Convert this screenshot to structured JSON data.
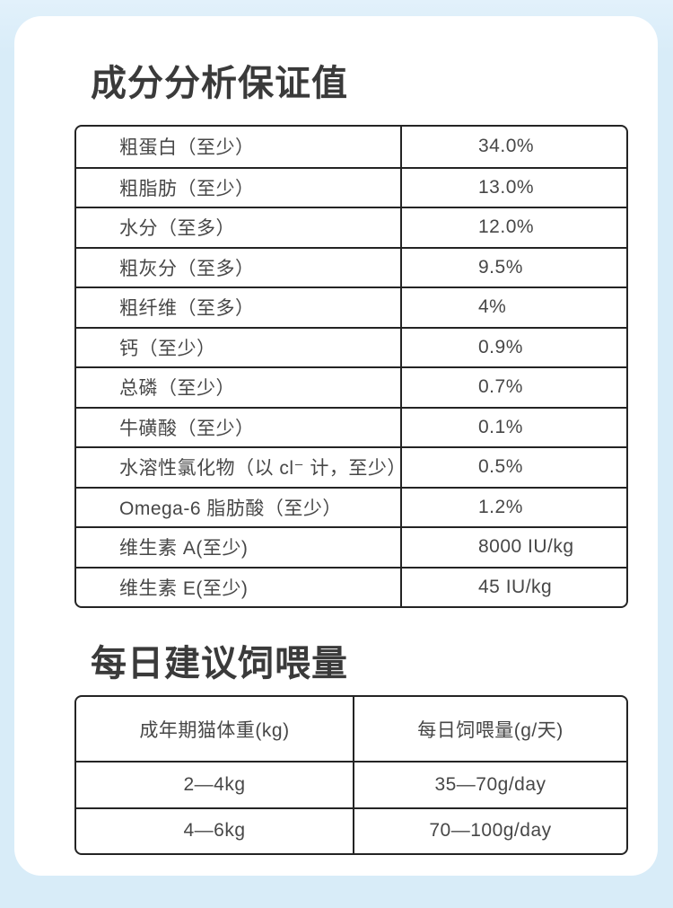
{
  "page": {
    "background_color": "#d8ecf8",
    "card_color": "#ffffff",
    "border_color": "#242424",
    "title_color": "#3a3a3a",
    "text_color": "#474747"
  },
  "analysis": {
    "title": "成分分析保证值",
    "rows": [
      {
        "label": "粗蛋白（至少）",
        "value": "34.0%"
      },
      {
        "label": "粗脂肪（至少）",
        "value": "13.0%"
      },
      {
        "label": "水分（至多）",
        "value": "12.0%"
      },
      {
        "label": "粗灰分（至多）",
        "value": "9.5%"
      },
      {
        "label": "粗纤维（至多）",
        "value": "4%"
      },
      {
        "label": "钙（至少）",
        "value": "0.9%"
      },
      {
        "label": "总磷（至少）",
        "value": "0.7%"
      },
      {
        "label": "牛磺酸（至少）",
        "value": "0.1%"
      },
      {
        "label": "水溶性氯化物（以 cl⁻ 计，至少）",
        "value": "0.5%"
      },
      {
        "label": "Omega-6 脂肪酸（至少）",
        "value": "1.2%"
      },
      {
        "label": "维生素 A(至少)",
        "value": "8000 IU/kg"
      },
      {
        "label": "维生素 E(至少)",
        "value": "45 IU/kg"
      }
    ]
  },
  "feeding": {
    "title": "每日建议饲喂量",
    "columns": [
      "成年期猫体重(kg)",
      "每日饲喂量(g/天)"
    ],
    "rows": [
      {
        "weight": "2—4kg",
        "amount": "35—70g/day"
      },
      {
        "weight": "4—6kg",
        "amount": "70—100g/day"
      }
    ]
  }
}
